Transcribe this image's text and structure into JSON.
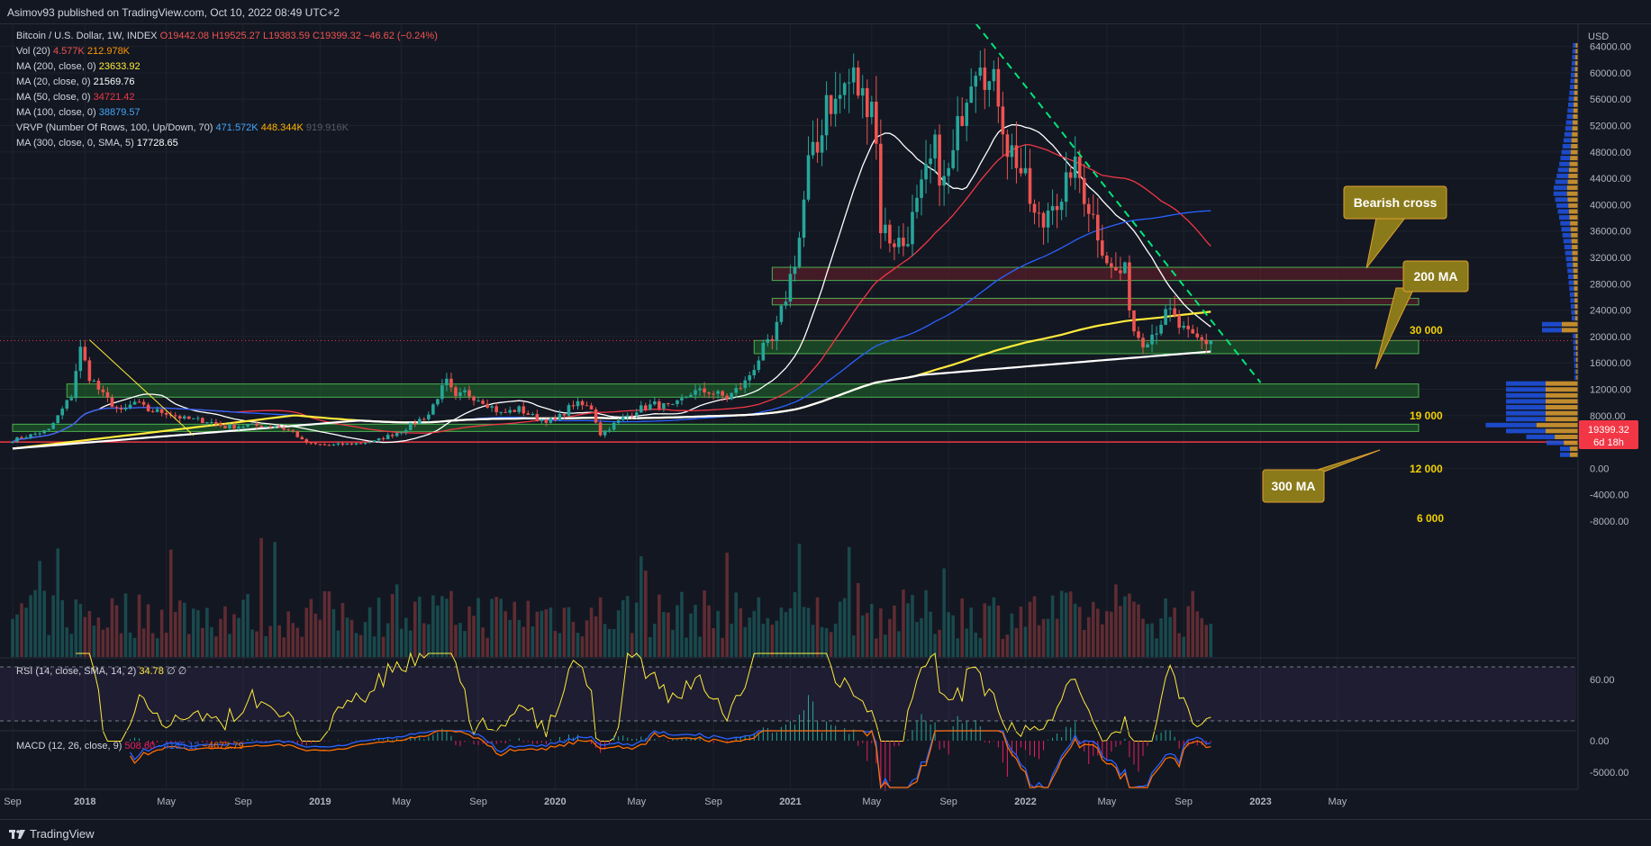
{
  "header": {
    "publisher": "Asimov93 published on TradingView.com, Oct 10, 2022 08:49 UTC+2"
  },
  "footer": {
    "brand": "TradingView"
  },
  "legend": {
    "symbol": "Bitcoin / U.S. Dollar, 1W, INDEX",
    "o": "O19442.08",
    "h": "H19525.27",
    "l": "L19383.59",
    "c": "C19399.32",
    "chg": "−46.62 (−0.24%)",
    "vol_label": "Vol (20)",
    "vol_a": "4.577K",
    "vol_b": "212.978K",
    "ma200_label": "MA (200, close, 0)",
    "ma200": "23633.92",
    "ma20_label": "MA (20, close, 0)",
    "ma20": "21569.76",
    "ma50_label": "MA (50, close, 0)",
    "ma50": "34721.42",
    "ma100_label": "MA (100, close, 0)",
    "ma100": "38879.57",
    "vrvp_label": "VRVP (Number Of Rows, 100, Up/Down, 70)",
    "vrvp_a": "471.572K",
    "vrvp_b": "448.344K",
    "vrvp_c": "919.916K",
    "ma300_label": "MA (300, close, 0, SMA, 5)",
    "ma300": "17728.65",
    "rsi_label": "RSI (14, close, SMA, 14, 2)",
    "rsi_val": "34.78",
    "rsi_na": "∅ ∅",
    "macd_label": "MACD (12, 26, close, 9)",
    "macd_a": "508.60",
    "macd_b": "−4165.12",
    "macd_c": "−4672.79"
  },
  "price_tag": {
    "value": "19399.32",
    "countdown": "6d 18h"
  },
  "annotations": {
    "bearish": "Bearish cross",
    "ma200": "200 MA",
    "ma300": "300 MA",
    "lvl30k": "30 000",
    "lvl19k": "19 000",
    "lvl12k": "12 000",
    "lvl6k": "6 000"
  },
  "axis": {
    "currency": "USD",
    "price_ticks": [
      {
        "v": 64000,
        "t": "64000.00"
      },
      {
        "v": 60000,
        "t": "60000.00"
      },
      {
        "v": 56000,
        "t": "56000.00"
      },
      {
        "v": 52000,
        "t": "52000.00"
      },
      {
        "v": 48000,
        "t": "48000.00"
      },
      {
        "v": 44000,
        "t": "44000.00"
      },
      {
        "v": 40000,
        "t": "40000.00"
      },
      {
        "v": 36000,
        "t": "36000.00"
      },
      {
        "v": 32000,
        "t": "32000.00"
      },
      {
        "v": 28000,
        "t": "28000.00"
      },
      {
        "v": 24000,
        "t": "24000.00"
      },
      {
        "v": 20000,
        "t": "20000.00"
      },
      {
        "v": 16000,
        "t": "16000.00"
      },
      {
        "v": 12000,
        "t": "12000.00"
      },
      {
        "v": 8000,
        "t": "8000.00"
      },
      {
        "v": 4000,
        "t": "4000.00"
      },
      {
        "v": 0,
        "t": "0.00"
      },
      {
        "v": -4000,
        "t": "-4000.00"
      },
      {
        "v": -8000,
        "t": "-8000.00"
      }
    ],
    "rsi_ticks": [
      {
        "v": 60,
        "t": "60.00"
      }
    ],
    "macd_ticks": [
      {
        "v": 0,
        "t": "0.00"
      },
      {
        "v": -5000,
        "t": "-5000.00"
      }
    ],
    "time_labels": [
      {
        "i": 0,
        "t": "Sep"
      },
      {
        "i": 16,
        "t": "2018"
      },
      {
        "i": 34,
        "t": "May"
      },
      {
        "i": 51,
        "t": "Sep"
      },
      {
        "i": 68,
        "t": "2019"
      },
      {
        "i": 86,
        "t": "May"
      },
      {
        "i": 103,
        "t": "Sep"
      },
      {
        "i": 120,
        "t": "2020"
      },
      {
        "i": 138,
        "t": "May"
      },
      {
        "i": 155,
        "t": "Sep"
      },
      {
        "i": 172,
        "t": "2021"
      },
      {
        "i": 190,
        "t": "May"
      },
      {
        "i": 207,
        "t": "Sep"
      },
      {
        "i": 224,
        "t": "2022"
      },
      {
        "i": 242,
        "t": "May"
      },
      {
        "i": 259,
        "t": "Sep"
      },
      {
        "i": 276,
        "t": "2023"
      },
      {
        "i": 293,
        "t": "May"
      }
    ]
  },
  "chart_data": {
    "type": "candlestick",
    "symbol": "Bitcoin / U.S. Dollar, 1W, INDEX",
    "ylim": [
      -9000,
      70000
    ],
    "close_anchors": [
      [
        0,
        4300
      ],
      [
        8,
        5800
      ],
      [
        13,
        11000
      ],
      [
        14,
        15000
      ],
      [
        15,
        18000
      ],
      [
        17,
        14000
      ],
      [
        20,
        11000
      ],
      [
        24,
        8500
      ],
      [
        27,
        10000
      ],
      [
        30,
        8800
      ],
      [
        34,
        8500
      ],
      [
        38,
        7500
      ],
      [
        43,
        7200
      ],
      [
        47,
        6300
      ],
      [
        52,
        6500
      ],
      [
        58,
        6400
      ],
      [
        62,
        5600
      ],
      [
        64,
        4200
      ],
      [
        66,
        3700
      ],
      [
        70,
        3500
      ],
      [
        76,
        3800
      ],
      [
        80,
        4100
      ],
      [
        86,
        5700
      ],
      [
        92,
        8200
      ],
      [
        94,
        11000
      ],
      [
        96,
        13000
      ],
      [
        98,
        10500
      ],
      [
        100,
        11500
      ],
      [
        104,
        10300
      ],
      [
        108,
        8300
      ],
      [
        112,
        9000
      ],
      [
        116,
        7500
      ],
      [
        120,
        7200
      ],
      [
        124,
        9800
      ],
      [
        128,
        9200
      ],
      [
        130,
        5200
      ],
      [
        133,
        6700
      ],
      [
        138,
        8900
      ],
      [
        142,
        9700
      ],
      [
        146,
        9200
      ],
      [
        150,
        11500
      ],
      [
        154,
        11700
      ],
      [
        158,
        10700
      ],
      [
        162,
        13000
      ],
      [
        164,
        15500
      ],
      [
        166,
        18000
      ],
      [
        168,
        19000
      ],
      [
        170,
        23500
      ],
      [
        172,
        29000
      ],
      [
        174,
        35000
      ],
      [
        176,
        46000
      ],
      [
        178,
        48000
      ],
      [
        180,
        57000
      ],
      [
        182,
        55000
      ],
      [
        184,
        58000
      ],
      [
        186,
        59000
      ],
      [
        188,
        56000
      ],
      [
        190,
        57000
      ],
      [
        191,
        49000
      ],
      [
        192,
        37000
      ],
      [
        194,
        35000
      ],
      [
        197,
        34000
      ],
      [
        200,
        39500
      ],
      [
        202,
        44000
      ],
      [
        204,
        48000
      ],
      [
        206,
        43000
      ],
      [
        208,
        47000
      ],
      [
        210,
        55000
      ],
      [
        212,
        61000
      ],
      [
        214,
        64000
      ],
      [
        216,
        58000
      ],
      [
        218,
        57000
      ],
      [
        220,
        49000
      ],
      [
        222,
        47000
      ],
      [
        224,
        43000
      ],
      [
        226,
        38000
      ],
      [
        228,
        37000
      ],
      [
        230,
        42000
      ],
      [
        232,
        39000
      ],
      [
        234,
        46000
      ],
      [
        236,
        44000
      ],
      [
        238,
        40000
      ],
      [
        240,
        36000
      ],
      [
        241,
        34000
      ],
      [
        243,
        30000
      ],
      [
        246,
        29500
      ],
      [
        248,
        21000
      ],
      [
        250,
        19500
      ],
      [
        252,
        20500
      ],
      [
        254,
        22500
      ],
      [
        256,
        23500
      ],
      [
        258,
        21500
      ],
      [
        260,
        20000
      ],
      [
        262,
        19500
      ],
      [
        264,
        19200
      ],
      [
        265,
        19399
      ]
    ],
    "candle_count": 266,
    "moving_averages": [
      {
        "name": "MA (20, close, 0)",
        "last": 21569.76,
        "color": "#ffffff"
      },
      {
        "name": "MA (50, close, 0)",
        "last": 34721.42,
        "color": "#f23645"
      },
      {
        "name": "MA (100, close, 0)",
        "last": 38879.57,
        "color": "#2962ff"
      },
      {
        "name": "MA (200, close, 0)",
        "last": 23633.92,
        "color": "#ffeb3b"
      },
      {
        "name": "MA (300, close, 0, SMA, 5)",
        "last": 17728.65,
        "color": "#ffffff"
      }
    ],
    "zones": [
      {
        "from": 28500,
        "to": 30500,
        "start_i": 168,
        "fill": "#6b1f2a"
      },
      {
        "from": 24800,
        "to": 25800,
        "start_i": 168,
        "fill": "#6b1f2a"
      },
      {
        "from": 17400,
        "to": 19400,
        "start_i": 164,
        "fill": "#1f6b2a"
      },
      {
        "from": 10800,
        "to": 12800,
        "start_i": 12,
        "fill": "#1f6b2a"
      },
      {
        "from": 5600,
        "to": 6700,
        "start_i": 0,
        "fill": "#1f6b2a"
      }
    ],
    "trendline_start": [
      213,
      67500
    ],
    "trendline_end": [
      276,
      13000
    ],
    "support_line": 4000,
    "colors": {
      "up": "#26a69a",
      "down": "#ef5350"
    }
  }
}
